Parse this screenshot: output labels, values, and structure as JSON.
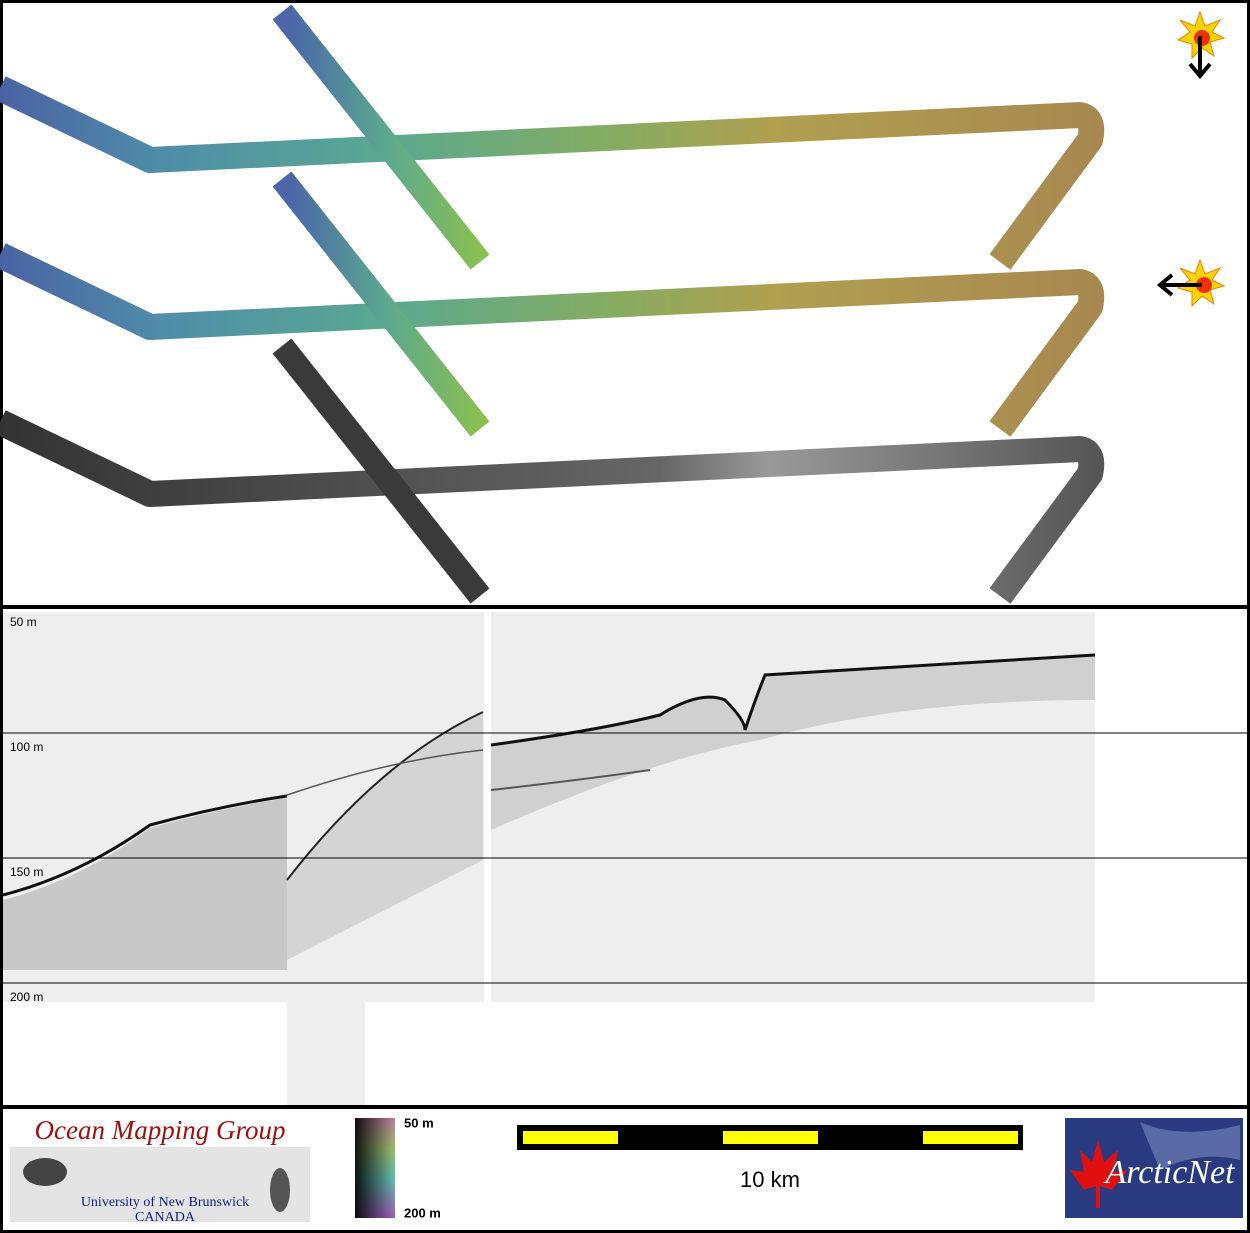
{
  "profile": {
    "depth_labels": [
      "50 m",
      "100 m",
      "150 m",
      "200 m"
    ]
  },
  "footer": {
    "logo": {
      "title": "Ocean Mapping Group",
      "line1": "University of New Brunswick",
      "line2": "CANADA"
    },
    "colorbar": {
      "top": "50 m",
      "bottom": "200 m"
    },
    "scale": "10 km",
    "partner": "ArcticNet"
  }
}
